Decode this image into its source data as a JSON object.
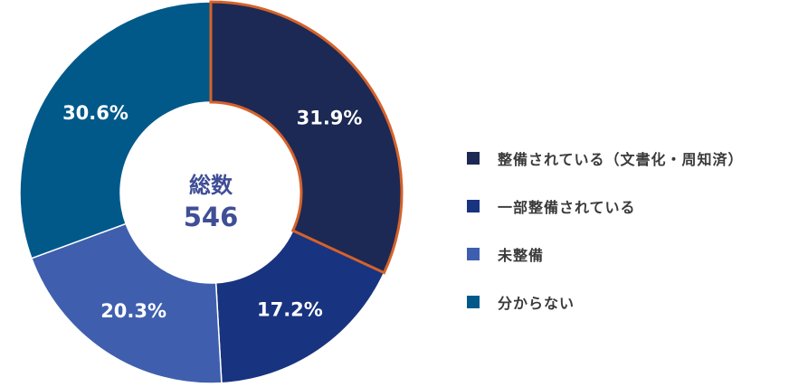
{
  "chart_data": {
    "type": "pie",
    "donut": true,
    "center_label": "総数",
    "center_value": "546",
    "categories": [
      "整備されている（文書化・周知済）",
      "一部整備されている",
      "未整備",
      "分からない"
    ],
    "values": [
      31.9,
      17.2,
      20.3,
      30.6
    ],
    "value_labels": [
      "31.9%",
      "17.2%",
      "20.3%",
      "30.6%"
    ],
    "colors": [
      "#1c2954",
      "#18337f",
      "#3f5fae",
      "#01598a"
    ],
    "highlight_color": "#d5622b",
    "highlighted_index": 0,
    "legend_position": "right"
  }
}
